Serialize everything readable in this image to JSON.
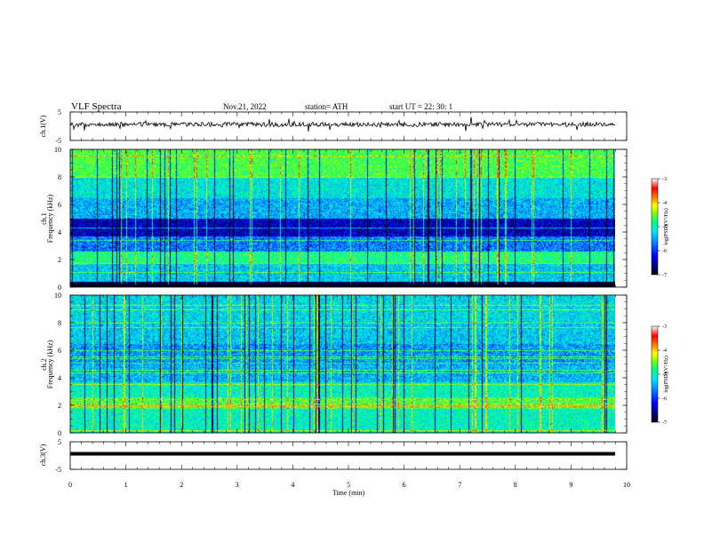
{
  "header": {
    "title": "VLF  Spectra",
    "date": "Nov.21, 2022",
    "station": "station= ATH",
    "start": "start  UT  =    22: 30: 1"
  },
  "chart_data": {
    "type": "heatmap",
    "x": {
      "label": "Time  (min)",
      "range": [
        0,
        10
      ],
      "ticks": [
        "0",
        "1",
        "2",
        "3",
        "4",
        "5",
        "6",
        "7",
        "8",
        "9",
        "10"
      ],
      "data_end": 9.8
    },
    "panels": [
      {
        "kind": "waveform",
        "ylabel": "ch.1(V)",
        "yrange": [
          -5,
          5
        ],
        "yticks": [
          "5",
          "-5"
        ]
      },
      {
        "kind": "spectrogram",
        "ylabel_channel": "ch.1",
        "ylabel": "Frequency  (kHz)",
        "yrange": [
          0,
          10
        ],
        "yticks": [
          "0",
          "2",
          "4",
          "6",
          "8",
          "10"
        ],
        "colorbar": {
          "label": "log(PSD)(V²/Hz)",
          "range": [
            -7,
            -3
          ],
          "ticks": [
            "-3",
            "-4",
            "-5",
            "-6",
            "-7"
          ]
        }
      },
      {
        "kind": "spectrogram",
        "ylabel_channel": "ch.2",
        "ylabel": "Frequency  (kHz)",
        "yrange": [
          0,
          10
        ],
        "yticks": [
          "0",
          "2",
          "4",
          "6",
          "8",
          "10"
        ],
        "colorbar": {
          "label": "log(PSD)(V²/Hz)",
          "range": [
            -7,
            -3
          ],
          "ticks": [
            "-3",
            "-4",
            "-5",
            "-6",
            "-7"
          ]
        }
      },
      {
        "kind": "waveform",
        "ylabel": "ch.3(V)",
        "yrange": [
          -5,
          5
        ],
        "yticks": [
          "5",
          "-5"
        ]
      }
    ],
    "colors": {
      "colormap": [
        "#000000",
        "#00007a",
        "#0000ff",
        "#0080ff",
        "#00e5ff",
        "#00ff80",
        "#7fff00",
        "#ffff00",
        "#ff8000",
        "#ff0000",
        "#ffffff"
      ]
    }
  }
}
